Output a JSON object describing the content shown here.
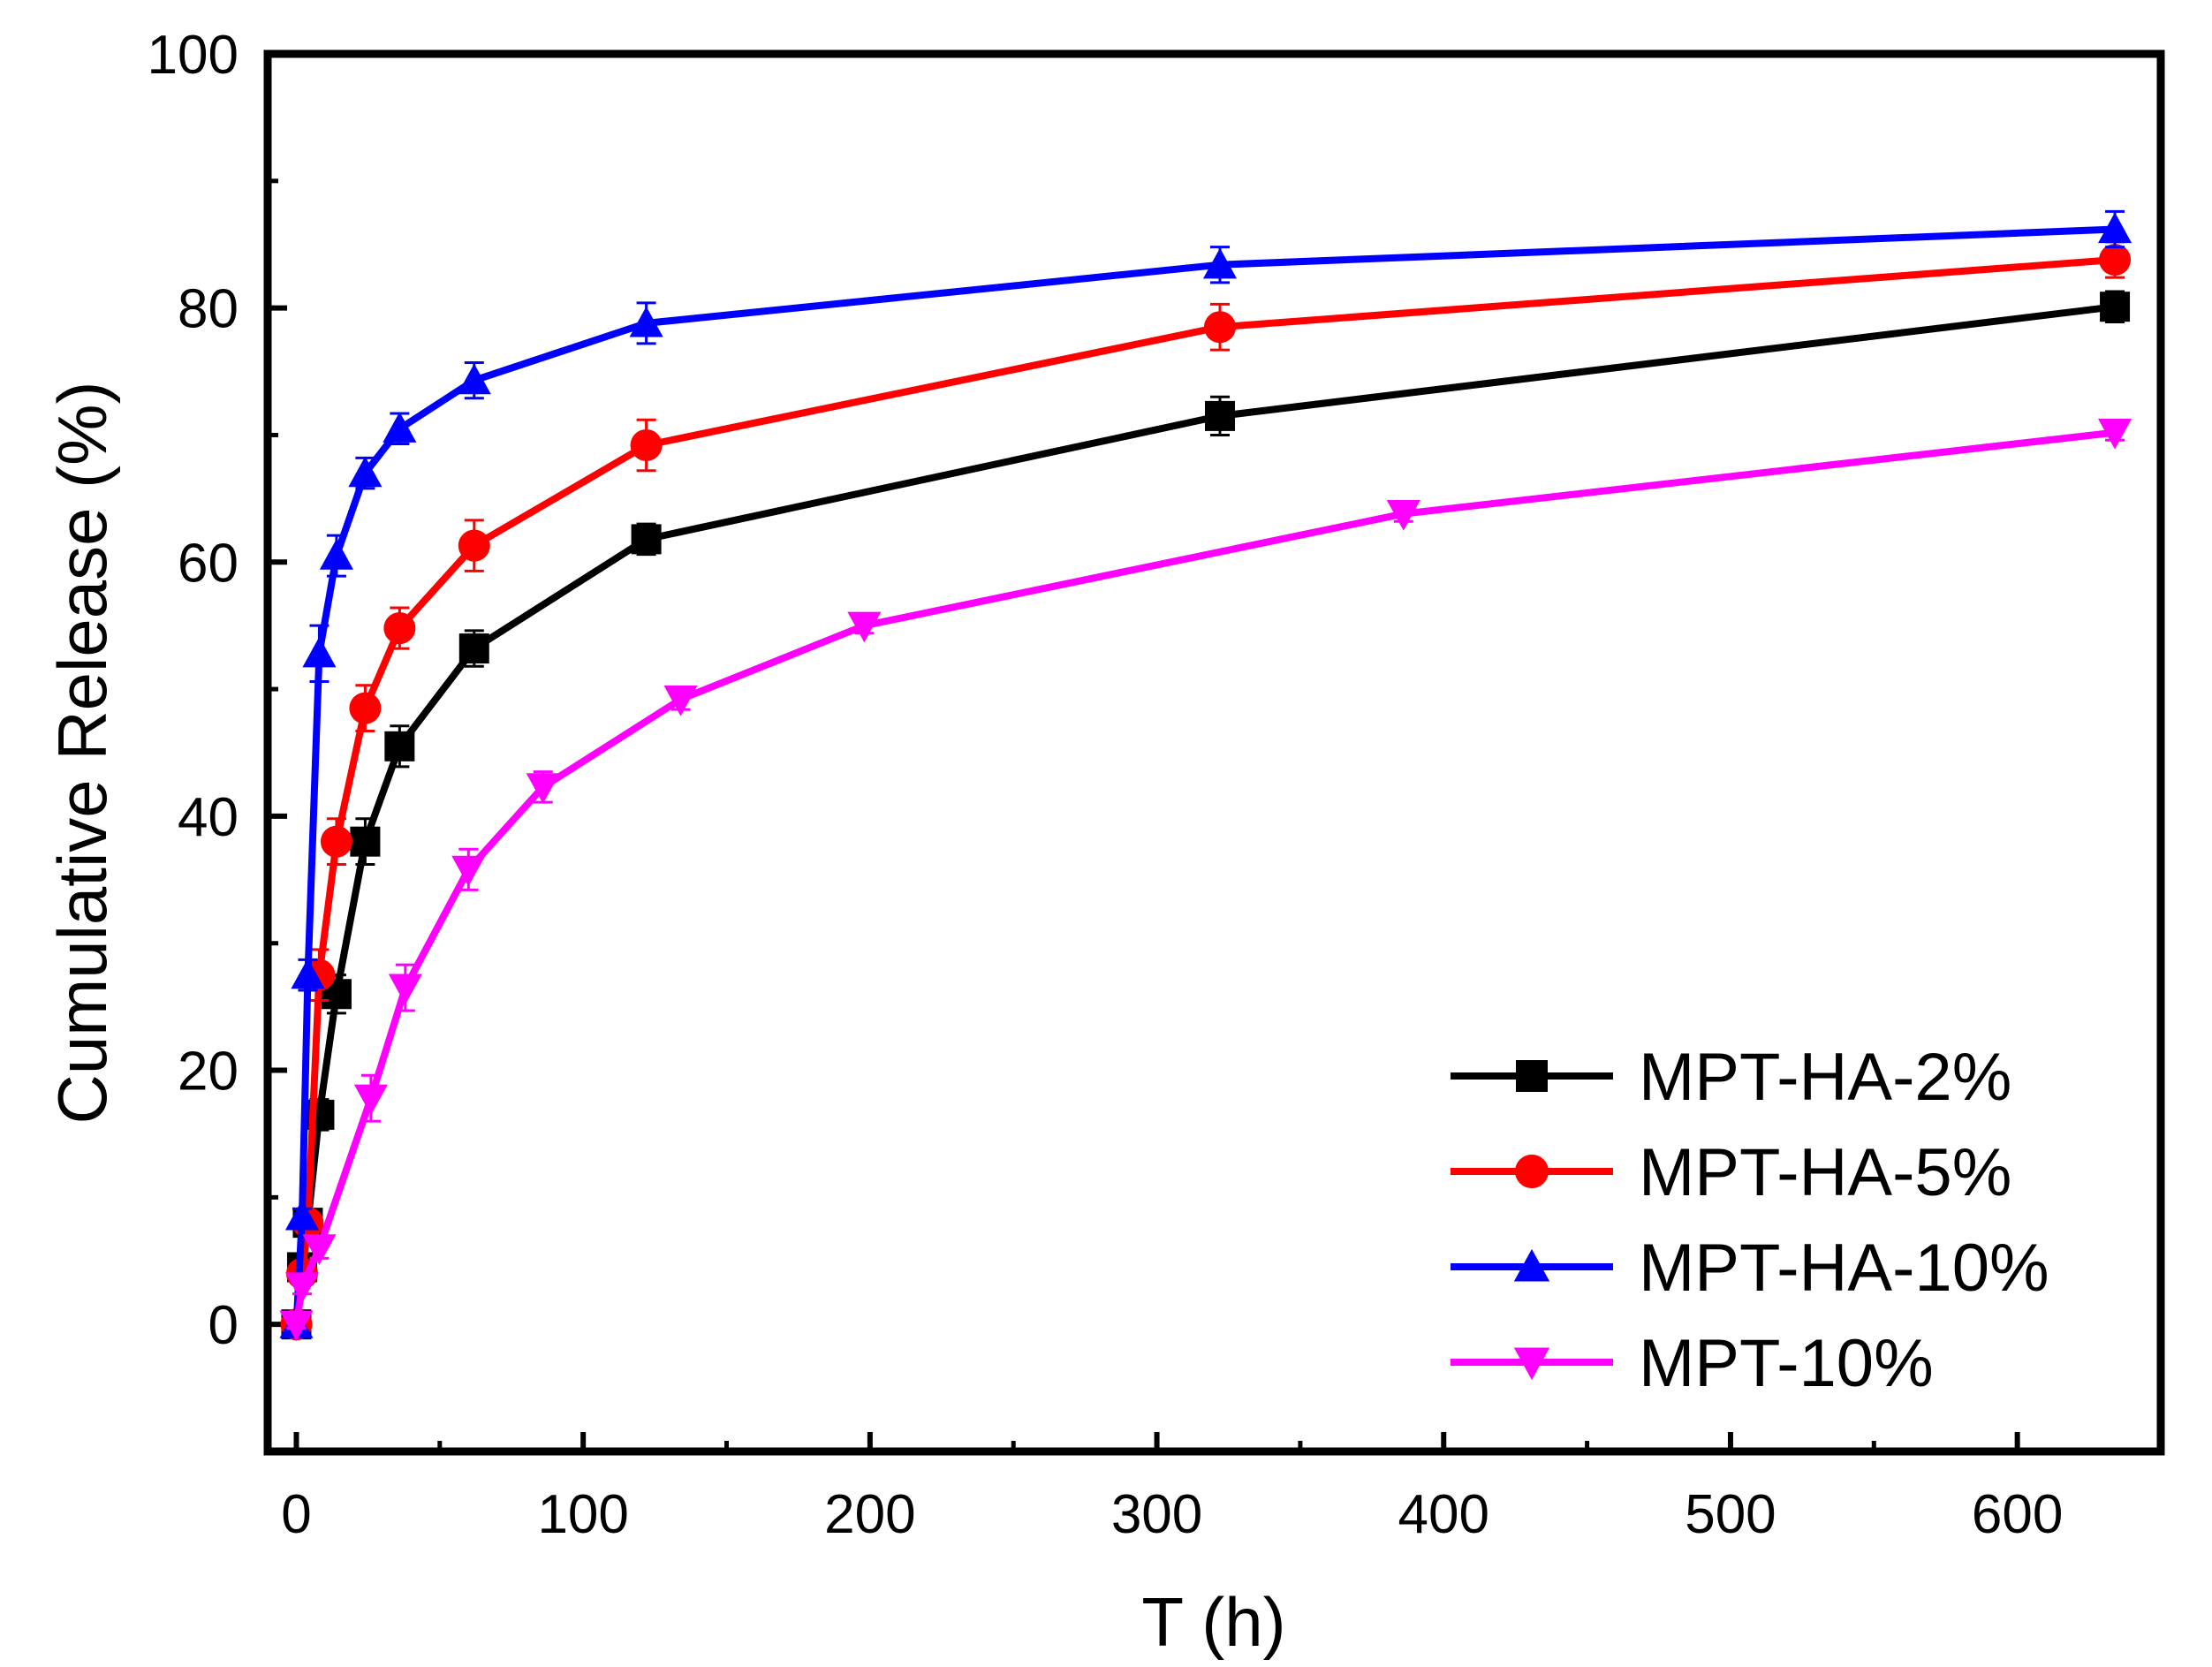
{
  "chart_data": {
    "type": "line",
    "title": "",
    "xlabel": "T (h)",
    "ylabel": "Cumulative Release (%)",
    "xlim": [
      -10,
      650
    ],
    "ylim": [
      -10,
      100
    ],
    "xticks": [
      0,
      100,
      200,
      300,
      400,
      500,
      600
    ],
    "xtick_labels": [
      "0",
      "100",
      "200",
      "300",
      "400",
      "500",
      "600"
    ],
    "yticks": [
      0,
      20,
      40,
      60,
      80,
      100
    ],
    "ytick_labels": [
      "0",
      "20",
      "40",
      "60",
      "80",
      "100"
    ],
    "grid": false,
    "legend_position": "bottom-right",
    "series": [
      {
        "name": "MPT-HA-2%",
        "color": "#000000",
        "marker": "square",
        "x": [
          0,
          2,
          4,
          8,
          14,
          24,
          36,
          62,
          122,
          322,
          634
        ],
        "y": [
          0,
          4.5,
          8,
          16.5,
          26,
          38,
          45.5,
          53.2,
          61.8,
          71.5,
          80.1
        ],
        "err": [
          0.4,
          0.6,
          0.8,
          1.2,
          1.5,
          1.8,
          1.6,
          1.4,
          1.2,
          1.5,
          1.2
        ]
      },
      {
        "name": "MPT-HA-5%",
        "color": "#ff0000",
        "marker": "circle",
        "x": [
          0,
          2,
          4,
          8,
          14,
          24,
          36,
          62,
          122,
          322,
          634
        ],
        "y": [
          0,
          4,
          8,
          27.5,
          38,
          48.5,
          54.8,
          61.3,
          69.2,
          78.5,
          83.8
        ],
        "err": [
          0.4,
          0.6,
          0.8,
          2.0,
          1.8,
          1.8,
          1.6,
          2.0,
          2.0,
          1.8,
          1.4
        ]
      },
      {
        "name": "MPT-HA-10%",
        "color": "#0000ff",
        "marker": "triangle-up",
        "x": [
          0,
          2,
          4,
          8,
          14,
          24,
          36,
          62,
          122,
          322,
          634
        ],
        "y": [
          0,
          8.5,
          27.5,
          52.8,
          60.5,
          67,
          70.5,
          74.3,
          78.8,
          83.4,
          86.2
        ],
        "err": [
          0.3,
          0.6,
          1.2,
          2.2,
          1.6,
          1.2,
          1.2,
          1.4,
          1.6,
          1.4,
          1.4
        ]
      },
      {
        "name": "MPT-10%",
        "color": "#ff00ff",
        "marker": "triangle-down",
        "x": [
          0,
          2,
          8,
          26,
          38,
          60,
          86,
          134,
          198,
          386,
          634
        ],
        "y": [
          0,
          3,
          6,
          17.8,
          26.5,
          35.8,
          42.3,
          49.2,
          55,
          63.8,
          70.2
        ],
        "err": [
          0.3,
          0.6,
          0.8,
          1.8,
          1.8,
          1.6,
          1.2,
          0.8,
          0.6,
          0.6,
          0.6
        ]
      }
    ]
  }
}
